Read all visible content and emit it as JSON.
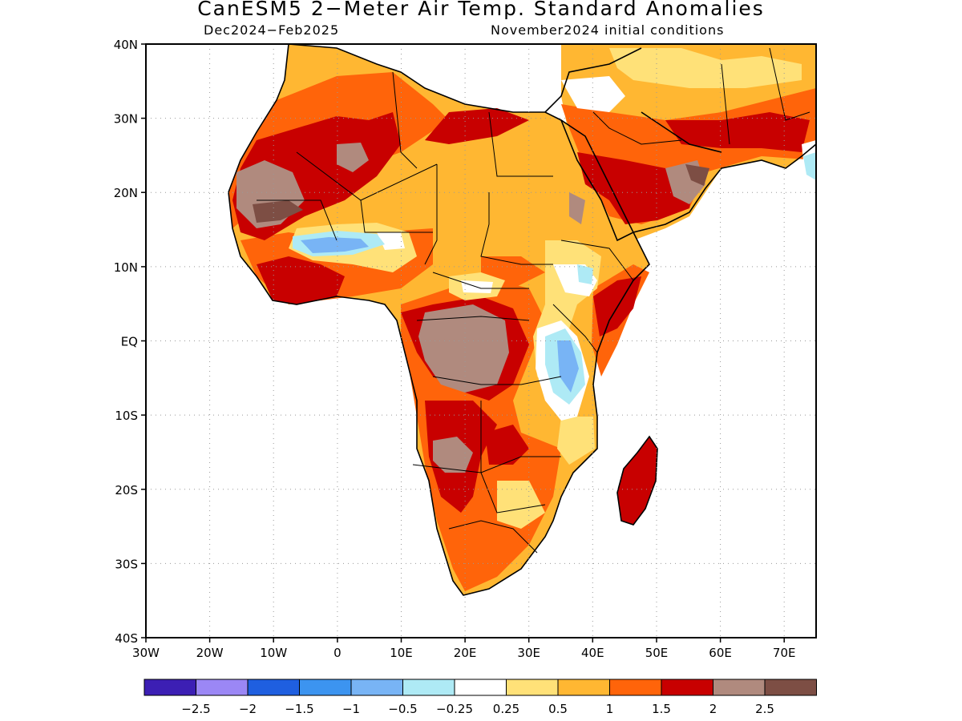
{
  "title": "CanESM5 2−Meter Air Temp. Standard Anomalies",
  "subtitle_left": "Dec2024−Feb2025",
  "subtitle_right": "November2024 initial conditions",
  "lat_labels": [
    "40N",
    "30N",
    "20N",
    "10N",
    "EQ",
    "10S",
    "20S",
    "30S",
    "40S"
  ],
  "lon_labels": [
    "30W",
    "20W",
    "10W",
    "0",
    "10E",
    "20E",
    "30E",
    "40E",
    "50E",
    "60E",
    "70E"
  ],
  "colorbar": {
    "colors": [
      "#3c1fb4",
      "#9b87f5",
      "#1f5fe0",
      "#3c94f0",
      "#78b4f5",
      "#aeeaf5",
      "#ffffff",
      "#ffe178",
      "#ffb732",
      "#ff640a",
      "#c80000",
      "#b08a7e",
      "#7d4e44"
    ],
    "labels": [
      "−2.5",
      "−2",
      "−1.5",
      "−1",
      "−0.5",
      "−0.25",
      "0.25",
      "0.5",
      "1",
      "1.5",
      "2",
      "2.5"
    ]
  }
}
